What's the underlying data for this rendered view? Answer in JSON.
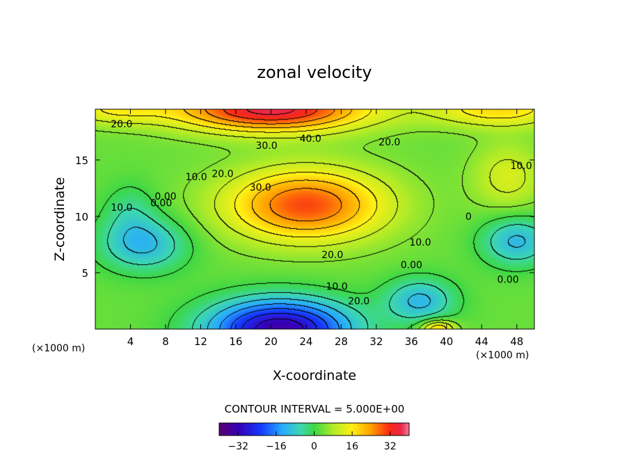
{
  "chart_data": {
    "type": "heatmap",
    "title": "zonal velocity",
    "xlabel": "X-coordinate",
    "ylabel": "Z-coordinate",
    "x_unit_left": "(×1000 m)",
    "x_unit_right": "(×1000 m)",
    "xlim": [
      0,
      50
    ],
    "ylim": [
      0,
      19.5
    ],
    "x_ticks": [
      {
        "value": 4,
        "label": "4"
      },
      {
        "value": 8,
        "label": "8"
      },
      {
        "value": 12,
        "label": "12"
      },
      {
        "value": 16,
        "label": "16"
      },
      {
        "value": 20,
        "label": "20"
      },
      {
        "value": 24,
        "label": "24"
      },
      {
        "value": 28,
        "label": "28"
      },
      {
        "value": 32,
        "label": "32"
      },
      {
        "value": 36,
        "label": "36"
      },
      {
        "value": 40,
        "label": "40"
      },
      {
        "value": 44,
        "label": "44"
      },
      {
        "value": 48,
        "label": "48"
      }
    ],
    "y_ticks": [
      {
        "value": 5,
        "label": "5"
      },
      {
        "value": 10,
        "label": "10"
      },
      {
        "value": 15,
        "label": "15"
      }
    ],
    "contour_interval_text": "CONTOUR INTERVAL = 5.000E+00",
    "colorbar": {
      "range": [
        -40,
        40
      ],
      "ticks": [
        {
          "value": -32,
          "label": "−32"
        },
        {
          "value": -16,
          "label": "−16"
        },
        {
          "value": 0,
          "label": "0"
        },
        {
          "value": 16,
          "label": "16"
        },
        {
          "value": 32,
          "label": "32"
        }
      ]
    },
    "features": [
      {
        "kind": "max",
        "x": 24,
        "z": 11,
        "amplitude": 27,
        "sx": 9,
        "sz": 3.2
      },
      {
        "kind": "max",
        "x": 20,
        "z": 19.5,
        "amplitude": 34,
        "sx": 11,
        "sz": 2.0
      },
      {
        "kind": "max",
        "x": 46,
        "z": 19.5,
        "amplitude": 15,
        "sx": 8,
        "sz": 1.6
      },
      {
        "kind": "max",
        "x": 2,
        "z": 19.5,
        "amplitude": 11,
        "sx": 6,
        "sz": 1.4
      },
      {
        "kind": "max",
        "x": 47,
        "z": 13.5,
        "amplitude": 9,
        "sx": 4,
        "sz": 3
      },
      {
        "kind": "min",
        "x": 21,
        "z": 0.0,
        "amplitude": -37,
        "sx": 8,
        "sz": 2.6
      },
      {
        "kind": "min",
        "x": 37,
        "z": 2.5,
        "amplitude": -14,
        "sx": 4,
        "sz": 2.0
      },
      {
        "kind": "min",
        "x": 5.5,
        "z": 7.5,
        "amplitude": -14,
        "sx": 5,
        "sz": 2.4
      },
      {
        "kind": "min",
        "x": 48,
        "z": 7.8,
        "amplitude": -14,
        "sx": 4,
        "sz": 2.2
      },
      {
        "kind": "min",
        "x": 4,
        "z": 10.5,
        "amplitude": -6,
        "sx": 3,
        "sz": 2.5
      },
      {
        "kind": "max",
        "x": 39,
        "z": 0.0,
        "amplitude": 18,
        "sx": 2,
        "sz": 0.8
      }
    ],
    "background_value": 3,
    "white_regions_note": "values above 40 and below -40 left blank",
    "contour_labels": [
      {
        "text": "20.0",
        "x": 3,
        "z": 18.2
      },
      {
        "text": "30.0",
        "x": 19.5,
        "z": 16.3
      },
      {
        "text": "40.0",
        "x": 24.5,
        "z": 16.9
      },
      {
        "text": "20.0",
        "x": 33.5,
        "z": 16.6
      },
      {
        "text": "10.0",
        "x": 48.5,
        "z": 14.5
      },
      {
        "text": "10.0",
        "x": 11.5,
        "z": 13.5
      },
      {
        "text": "20.0",
        "x": 14.5,
        "z": 13.8
      },
      {
        "text": "0.00",
        "x": 8.0,
        "z": 11.8
      },
      {
        "text": "30.0",
        "x": 18.8,
        "z": 12.6
      },
      {
        "text": "10.0",
        "x": 3.0,
        "z": 10.8
      },
      {
        "text": "0.00",
        "x": 7.5,
        "z": 11.2
      },
      {
        "text": "0",
        "x": 42.5,
        "z": 10.0
      },
      {
        "text": "10.0",
        "x": 37.0,
        "z": 7.7
      },
      {
        "text": "20.0",
        "x": 27.0,
        "z": 6.6
      },
      {
        "text": "0.00",
        "x": 36.0,
        "z": 5.7
      },
      {
        "text": "0.00",
        "x": 47.0,
        "z": 4.4
      },
      {
        "text": "10.0",
        "x": 27.5,
        "z": 3.8
      },
      {
        "text": "20.0",
        "x": 30.0,
        "z": 2.5
      }
    ]
  }
}
